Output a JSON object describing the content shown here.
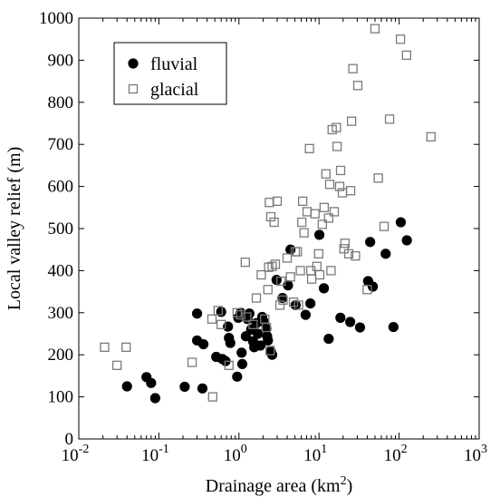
{
  "chart_data": {
    "type": "scatter",
    "title": "",
    "xlabel": "Drainage area (km",
    "xlabel_superscript": "2",
    "xlabel_suffix": ")",
    "ylabel": "Local valley relief (m)",
    "x_scale": "log",
    "xlim": [
      0.01,
      1000
    ],
    "ylim": [
      0,
      1000
    ],
    "x_ticks": [
      {
        "value": 0.01,
        "base": "10",
        "exp": "-2"
      },
      {
        "value": 0.1,
        "base": "10",
        "exp": "-1"
      },
      {
        "value": 1,
        "base": "10",
        "exp": "0"
      },
      {
        "value": 10,
        "base": "10",
        "exp": "1"
      },
      {
        "value": 100,
        "base": "10",
        "exp": "2"
      },
      {
        "value": 1000,
        "base": "10",
        "exp": "3"
      }
    ],
    "y_ticks": [
      0,
      100,
      200,
      300,
      400,
      500,
      600,
      700,
      800,
      900,
      1000
    ],
    "grid": false,
    "legend_position": "top-left",
    "series": [
      {
        "name": "fluvial",
        "marker": "filled-circle",
        "color": "#000000",
        "points": [
          [
            0.04,
            125
          ],
          [
            0.07,
            147
          ],
          [
            0.08,
            133
          ],
          [
            0.09,
            97
          ],
          [
            0.21,
            124
          ],
          [
            0.3,
            298
          ],
          [
            0.3,
            234
          ],
          [
            0.35,
            120
          ],
          [
            0.36,
            225
          ],
          [
            0.52,
            195
          ],
          [
            0.6,
            302
          ],
          [
            0.62,
            190
          ],
          [
            0.68,
            185
          ],
          [
            0.73,
            267
          ],
          [
            0.75,
            240
          ],
          [
            0.78,
            228
          ],
          [
            0.95,
            148
          ],
          [
            0.98,
            288
          ],
          [
            1.05,
            300
          ],
          [
            1.08,
            205
          ],
          [
            1.1,
            178
          ],
          [
            1.22,
            244
          ],
          [
            1.28,
            285
          ],
          [
            1.35,
            298
          ],
          [
            1.42,
            260
          ],
          [
            1.5,
            232
          ],
          [
            1.55,
            218
          ],
          [
            1.65,
            275
          ],
          [
            1.72,
            250
          ],
          [
            1.85,
            222
          ],
          [
            1.95,
            290
          ],
          [
            2.05,
            278
          ],
          [
            2.2,
            262
          ],
          [
            2.25,
            244
          ],
          [
            2.3,
            234
          ],
          [
            2.5,
            208
          ],
          [
            2.6,
            200
          ],
          [
            2.95,
            378
          ],
          [
            3.5,
            335
          ],
          [
            4.1,
            365
          ],
          [
            4.4,
            450
          ],
          [
            5.1,
            318
          ],
          [
            6.8,
            295
          ],
          [
            7.8,
            322
          ],
          [
            10.1,
            485
          ],
          [
            11.5,
            358
          ],
          [
            13.2,
            238
          ],
          [
            18.5,
            288
          ],
          [
            24.5,
            278
          ],
          [
            32.5,
            265
          ],
          [
            41,
            375
          ],
          [
            43.5,
            468
          ],
          [
            47,
            362
          ],
          [
            68,
            440
          ],
          [
            85,
            266
          ],
          [
            105,
            515
          ],
          [
            125,
            472
          ]
        ]
      },
      {
        "name": "glacial",
        "marker": "open-square",
        "color": "#7a7a7a",
        "points": [
          [
            0.021,
            218
          ],
          [
            0.03,
            175
          ],
          [
            0.039,
            218
          ],
          [
            0.26,
            182
          ],
          [
            0.46,
            285
          ],
          [
            0.47,
            100
          ],
          [
            0.55,
            305
          ],
          [
            0.6,
            272
          ],
          [
            0.75,
            175
          ],
          [
            0.95,
            300
          ],
          [
            1.05,
            295
          ],
          [
            1.2,
            420
          ],
          [
            1.25,
            290
          ],
          [
            1.5,
            272
          ],
          [
            1.65,
            335
          ],
          [
            1.9,
            390
          ],
          [
            2.1,
            285
          ],
          [
            2.2,
            265
          ],
          [
            2.3,
            355
          ],
          [
            2.35,
            408
          ],
          [
            2.4,
            562
          ],
          [
            2.45,
            210
          ],
          [
            2.5,
            528
          ],
          [
            2.6,
            410
          ],
          [
            2.75,
            515
          ],
          [
            2.85,
            415
          ],
          [
            3.0,
            565
          ],
          [
            3.25,
            318
          ],
          [
            3.35,
            375
          ],
          [
            3.55,
            330
          ],
          [
            4.0,
            430
          ],
          [
            4.4,
            385
          ],
          [
            4.8,
            325
          ],
          [
            5.05,
            445
          ],
          [
            5.35,
            445
          ],
          [
            5.55,
            318
          ],
          [
            5.85,
            400
          ],
          [
            6.1,
            515
          ],
          [
            6.25,
            565
          ],
          [
            6.5,
            490
          ],
          [
            7.1,
            540
          ],
          [
            7.6,
            690
          ],
          [
            7.9,
            400
          ],
          [
            8.1,
            380
          ],
          [
            8.9,
            535
          ],
          [
            9.4,
            410
          ],
          [
            9.9,
            440
          ],
          [
            10.2,
            390
          ],
          [
            11.0,
            510
          ],
          [
            11.6,
            550
          ],
          [
            12.2,
            630
          ],
          [
            13.2,
            525
          ],
          [
            13.6,
            605
          ],
          [
            14.1,
            400
          ],
          [
            14.6,
            735
          ],
          [
            15.5,
            540
          ],
          [
            16.5,
            740
          ],
          [
            16.8,
            695
          ],
          [
            18.1,
            600
          ],
          [
            18.6,
            638
          ],
          [
            19.6,
            585
          ],
          [
            20.5,
            452
          ],
          [
            21.1,
            465
          ],
          [
            23.5,
            440
          ],
          [
            24.8,
            590
          ],
          [
            25.5,
            755
          ],
          [
            26.5,
            880
          ],
          [
            28.5,
            435
          ],
          [
            30.5,
            840
          ],
          [
            40,
            355
          ],
          [
            50,
            975
          ],
          [
            55,
            620
          ],
          [
            65,
            505
          ],
          [
            76,
            760
          ],
          [
            104,
            950
          ],
          [
            124,
            912
          ],
          [
            250,
            718
          ]
        ]
      }
    ]
  }
}
